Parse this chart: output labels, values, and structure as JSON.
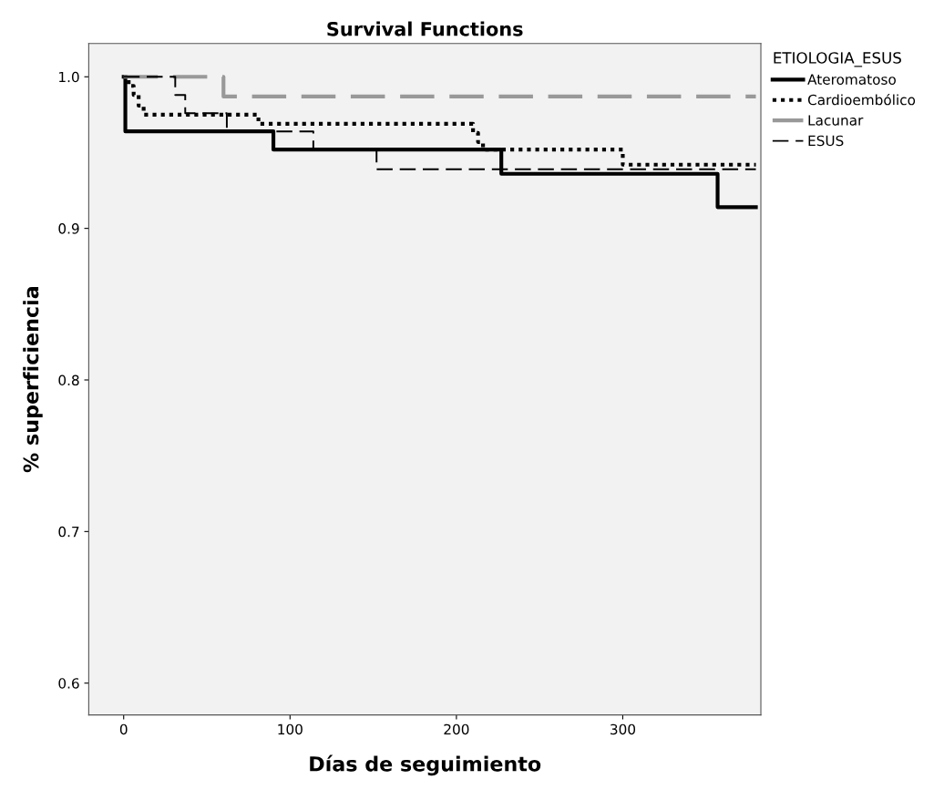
{
  "chart_data": {
    "type": "step",
    "title": "Survival Functions",
    "xlabel": "Días de seguimiento",
    "ylabel": "% superficiencia",
    "legend_title": "ETIOLOGIA_ESUS",
    "series": [
      {
        "name": "Ateromatoso",
        "color": "#000000",
        "line_style": "solid",
        "x": [
          0,
          1,
          90,
          227,
          357,
          380
        ],
        "values": [
          1.0,
          0.964,
          0.952,
          0.936,
          0.914,
          0.914
        ]
      },
      {
        "name": "Cardioembólico",
        "color": "#000000",
        "line_style": "dotted",
        "x": [
          0,
          3,
          6,
          9,
          12,
          81,
          210,
          213,
          216,
          300,
          380
        ],
        "values": [
          1.0,
          0.994,
          0.988,
          0.981,
          0.975,
          0.969,
          0.963,
          0.957,
          0.952,
          0.942,
          0.942
        ]
      },
      {
        "name": "Lacunar",
        "color": "#999999",
        "line_style": "dashed",
        "x": [
          0,
          60,
          380
        ],
        "values": [
          1.0,
          0.987,
          0.987
        ]
      },
      {
        "name": "ESUS",
        "color": "#000000",
        "line_style": "dashed",
        "x": [
          0,
          31,
          37,
          62,
          114,
          152,
          380
        ],
        "values": [
          1.0,
          0.988,
          0.976,
          0.964,
          0.952,
          0.939,
          0.939
        ]
      }
    ],
    "xlim": [
      -21,
      383
    ],
    "ylim": [
      0.579,
      1.022
    ],
    "xticks": [
      0,
      100,
      200,
      300
    ],
    "yticks": [
      0.6,
      0.7,
      0.8,
      0.9,
      {
        "value": 1,
        "label": "1.0"
      }
    ],
    "grid": false,
    "legend": "right",
    "marker": "none"
  }
}
